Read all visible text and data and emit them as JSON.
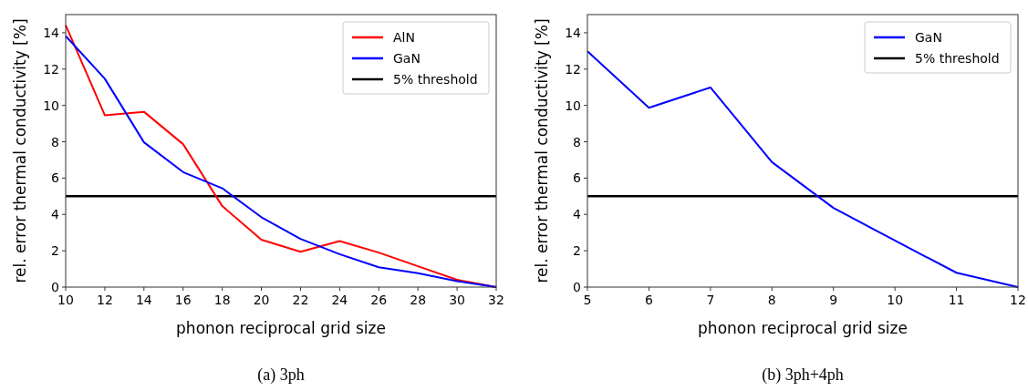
{
  "chart_data": [
    {
      "type": "line",
      "xlabel": "phonon reciprocal grid size",
      "ylabel": "rel. error thermal conductivity [%]",
      "x": [
        10,
        12,
        14,
        16,
        18,
        20,
        22,
        24,
        26,
        28,
        30,
        32
      ],
      "xlim": [
        10,
        32
      ],
      "xticks": [
        10,
        12,
        14,
        16,
        18,
        20,
        22,
        24,
        26,
        28,
        30,
        32
      ],
      "ylim": [
        0,
        15
      ],
      "yticks": [
        0,
        2,
        4,
        6,
        8,
        10,
        12,
        14
      ],
      "legend": "top right",
      "grid": false,
      "annotations": [
        "(a) 3ph"
      ],
      "series": [
        {
          "name": "AlN",
          "color": "#ff0000",
          "values": [
            14.42,
            9.46,
            9.65,
            7.87,
            4.46,
            2.61,
            1.94,
            2.53,
            1.9,
            1.15,
            0.4,
            0
          ]
        },
        {
          "name": "GaN",
          "color": "#0000ff",
          "values": [
            13.82,
            11.47,
            7.97,
            6.33,
            5.44,
            3.85,
            2.65,
            1.81,
            1.09,
            0.77,
            0.33,
            0
          ]
        }
      ],
      "ref_lines": [
        {
          "axis": "y",
          "value": 5,
          "label": "5% threshold",
          "color": "#000000"
        }
      ]
    },
    {
      "type": "line",
      "xlabel": "phonon reciprocal grid size",
      "ylabel": "rel. error thermal conductivity [%]",
      "x": [
        5,
        6,
        7,
        8,
        9,
        10,
        11,
        12
      ],
      "xlim": [
        5,
        12
      ],
      "xticks": [
        5,
        6,
        7,
        8,
        9,
        10,
        11,
        12
      ],
      "ylim": [
        0,
        15
      ],
      "yticks": [
        0,
        2,
        4,
        6,
        8,
        10,
        12,
        14
      ],
      "legend": "top right",
      "grid": false,
      "annotations": [
        "(b) 3ph+4ph"
      ],
      "series": [
        {
          "name": "GaN",
          "color": "#0000ff",
          "values": [
            12.98,
            9.87,
            10.99,
            6.88,
            4.36,
            2.56,
            0.79,
            0
          ]
        }
      ],
      "ref_lines": [
        {
          "axis": "y",
          "value": 5,
          "label": "5% threshold",
          "color": "#000000"
        }
      ]
    }
  ]
}
